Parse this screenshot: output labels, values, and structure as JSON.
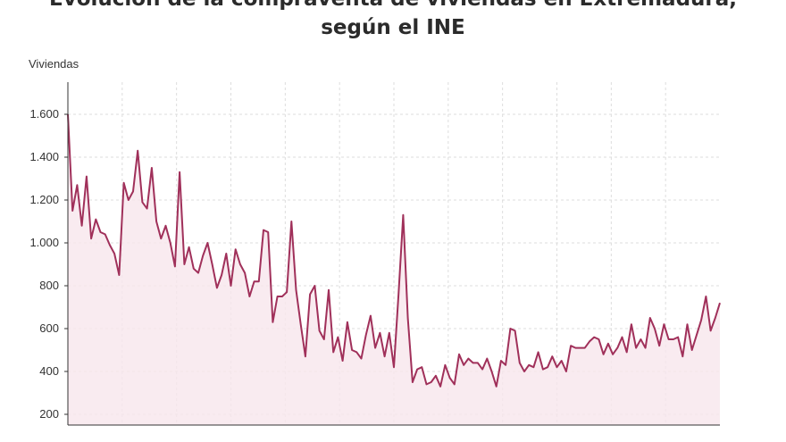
{
  "title_line1": "Evolución de la compraventa de viviendas en Extremadura,",
  "title_line2": "según el INE",
  "chart_data": {
    "type": "area",
    "title": "Evolución de la compraventa de viviendas en Extremadura, según el INE",
    "ylabel": "Viviendas",
    "ylim": [
      150,
      1750
    ],
    "yticks": [
      200,
      400,
      600,
      800,
      1000,
      1200,
      1400,
      1600
    ],
    "ytick_labels": [
      "200",
      "400",
      "600",
      "800",
      "1.000",
      "1.200",
      "1.400",
      "1.600"
    ],
    "grid": true,
    "line_color": "#a0305a",
    "fill_color": "#f8e6ec",
    "series": [
      {
        "values": [
          1600,
          1150,
          1270,
          1080,
          1310,
          1020,
          1110,
          1050,
          1040,
          990,
          950,
          850,
          1280,
          1200,
          1240,
          1430,
          1190,
          1160,
          1350,
          1100,
          1020,
          1080,
          1000,
          890,
          1330,
          900,
          980,
          880,
          860,
          940,
          1000,
          900,
          790,
          850,
          950,
          800,
          970,
          900,
          860,
          750,
          820,
          820,
          1060,
          1050,
          630,
          750,
          750,
          770,
          1100,
          780,
          620,
          470,
          760,
          800,
          590,
          550,
          780,
          490,
          560,
          450,
          630,
          500,
          490,
          460,
          570,
          660,
          510,
          580,
          470,
          580,
          420,
          760,
          1130,
          650,
          350,
          410,
          420,
          340,
          350,
          380,
          330,
          430,
          370,
          340,
          480,
          430,
          460,
          440,
          440,
          410,
          460,
          400,
          330,
          450,
          430,
          600,
          590,
          440,
          400,
          430,
          420,
          490,
          410,
          420,
          470,
          420,
          450,
          400,
          520,
          510,
          510,
          510,
          540,
          560,
          550,
          480,
          530,
          480,
          510,
          560,
          490,
          620,
          510,
          550,
          510,
          650,
          600,
          520,
          620,
          550,
          550,
          560,
          470,
          620,
          500,
          570,
          640,
          750,
          590,
          650,
          720
        ]
      }
    ]
  }
}
